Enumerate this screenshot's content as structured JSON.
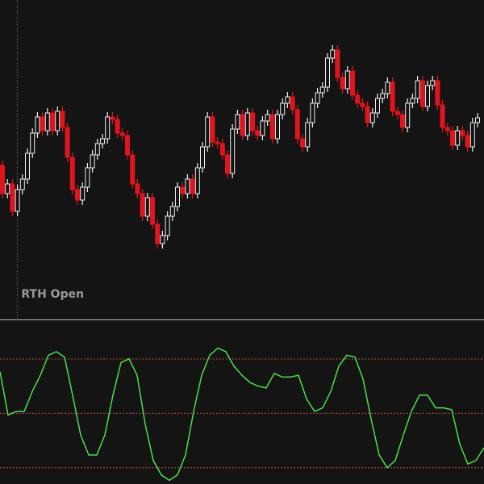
{
  "chart_data": [
    {
      "type": "candlestick",
      "annotation": "RTH Open",
      "annotation_index": 2,
      "ylim": [
        5,
        400
      ],
      "up_color": "#eeeeee",
      "down_color": "#e0141e",
      "open": [
        195,
        160,
        172,
        138,
        165,
        178,
        210,
        235,
        255,
        238,
        260,
        238,
        262,
        242,
        205,
        165,
        152,
        168,
        192,
        208,
        222,
        228,
        255,
        252,
        235,
        232,
        208,
        172,
        160,
        132,
        155,
        122,
        98,
        108,
        132,
        144,
        168,
        160,
        178,
        160,
        192,
        218,
        255,
        224,
        222,
        208,
        185,
        240,
        258,
        232,
        260,
        238,
        232,
        250,
        258,
        228,
        258,
        272,
        280,
        264,
        228,
        218,
        248,
        272,
        285,
        292,
        328,
        338,
        304,
        290,
        312,
        282,
        272,
        268,
        248,
        260,
        278,
        284,
        298,
        262,
        258,
        242,
        272,
        278,
        300,
        268,
        294,
        300,
        270,
        242,
        238,
        220,
        238,
        232,
        218,
        248
      ],
      "high": [
        201,
        178,
        178,
        171,
        184,
        216,
        241,
        261,
        261,
        266,
        266,
        268,
        268,
        248,
        211,
        171,
        174,
        198,
        214,
        228,
        234,
        261,
        261,
        258,
        241,
        238,
        214,
        178,
        166,
        161,
        161,
        128,
        114,
        138,
        150,
        174,
        174,
        184,
        184,
        198,
        224,
        261,
        261,
        230,
        228,
        214,
        246,
        264,
        264,
        266,
        266,
        244,
        256,
        264,
        264,
        264,
        278,
        286,
        286,
        270,
        234,
        254,
        278,
        291,
        298,
        334,
        344,
        344,
        310,
        318,
        318,
        288,
        278,
        274,
        266,
        284,
        290,
        304,
        304,
        268,
        264,
        278,
        284,
        306,
        306,
        300,
        306,
        306,
        276,
        248,
        244,
        244,
        244,
        238,
        254,
        260
      ],
      "low": [
        154,
        154,
        132,
        132,
        159,
        172,
        204,
        229,
        232,
        232,
        232,
        232,
        236,
        199,
        159,
        146,
        146,
        162,
        186,
        202,
        216,
        222,
        246,
        229,
        226,
        202,
        166,
        154,
        126,
        126,
        116,
        92,
        92,
        102,
        126,
        138,
        154,
        154,
        154,
        154,
        186,
        212,
        218,
        216,
        202,
        179,
        179,
        234,
        226,
        226,
        232,
        226,
        226,
        244,
        222,
        222,
        252,
        266,
        258,
        222,
        212,
        212,
        242,
        266,
        279,
        286,
        322,
        298,
        284,
        284,
        276,
        266,
        262,
        242,
        242,
        254,
        272,
        278,
        256,
        252,
        236,
        236,
        266,
        272,
        262,
        262,
        288,
        264,
        236,
        232,
        214,
        214,
        226,
        212,
        212,
        242
      ],
      "close": [
        160,
        172,
        138,
        165,
        178,
        210,
        235,
        255,
        238,
        260,
        238,
        262,
        242,
        205,
        165,
        152,
        168,
        192,
        208,
        222,
        228,
        255,
        252,
        235,
        232,
        208,
        172,
        160,
        132,
        155,
        122,
        98,
        108,
        132,
        144,
        168,
        160,
        178,
        160,
        192,
        218,
        255,
        224,
        222,
        208,
        185,
        240,
        258,
        232,
        260,
        238,
        232,
        250,
        258,
        228,
        258,
        272,
        280,
        264,
        228,
        218,
        248,
        272,
        285,
        292,
        328,
        338,
        304,
        290,
        312,
        282,
        272,
        268,
        248,
        260,
        278,
        284,
        298,
        262,
        258,
        242,
        272,
        278,
        300,
        268,
        294,
        300,
        270,
        242,
        238,
        220,
        238,
        232,
        218,
        248,
        254
      ]
    },
    {
      "type": "line",
      "ylim": [
        11,
        100
      ],
      "levels": [
        80,
        50,
        20
      ],
      "level_color": "#c0503c",
      "color": "#4ddc4d",
      "values": [
        73,
        49,
        51,
        51,
        62,
        71,
        82,
        84,
        81,
        60,
        38,
        27,
        27,
        38,
        60,
        78,
        80,
        71,
        44,
        24,
        16,
        13,
        16,
        27,
        51,
        71,
        82,
        86,
        84,
        76,
        71,
        67,
        65,
        64,
        72,
        70,
        70,
        71,
        58,
        51,
        53,
        62,
        76,
        82,
        81,
        69,
        47,
        27,
        20,
        24,
        38,
        51,
        60,
        60,
        53,
        53,
        52,
        33,
        22,
        24,
        31
      ]
    }
  ]
}
